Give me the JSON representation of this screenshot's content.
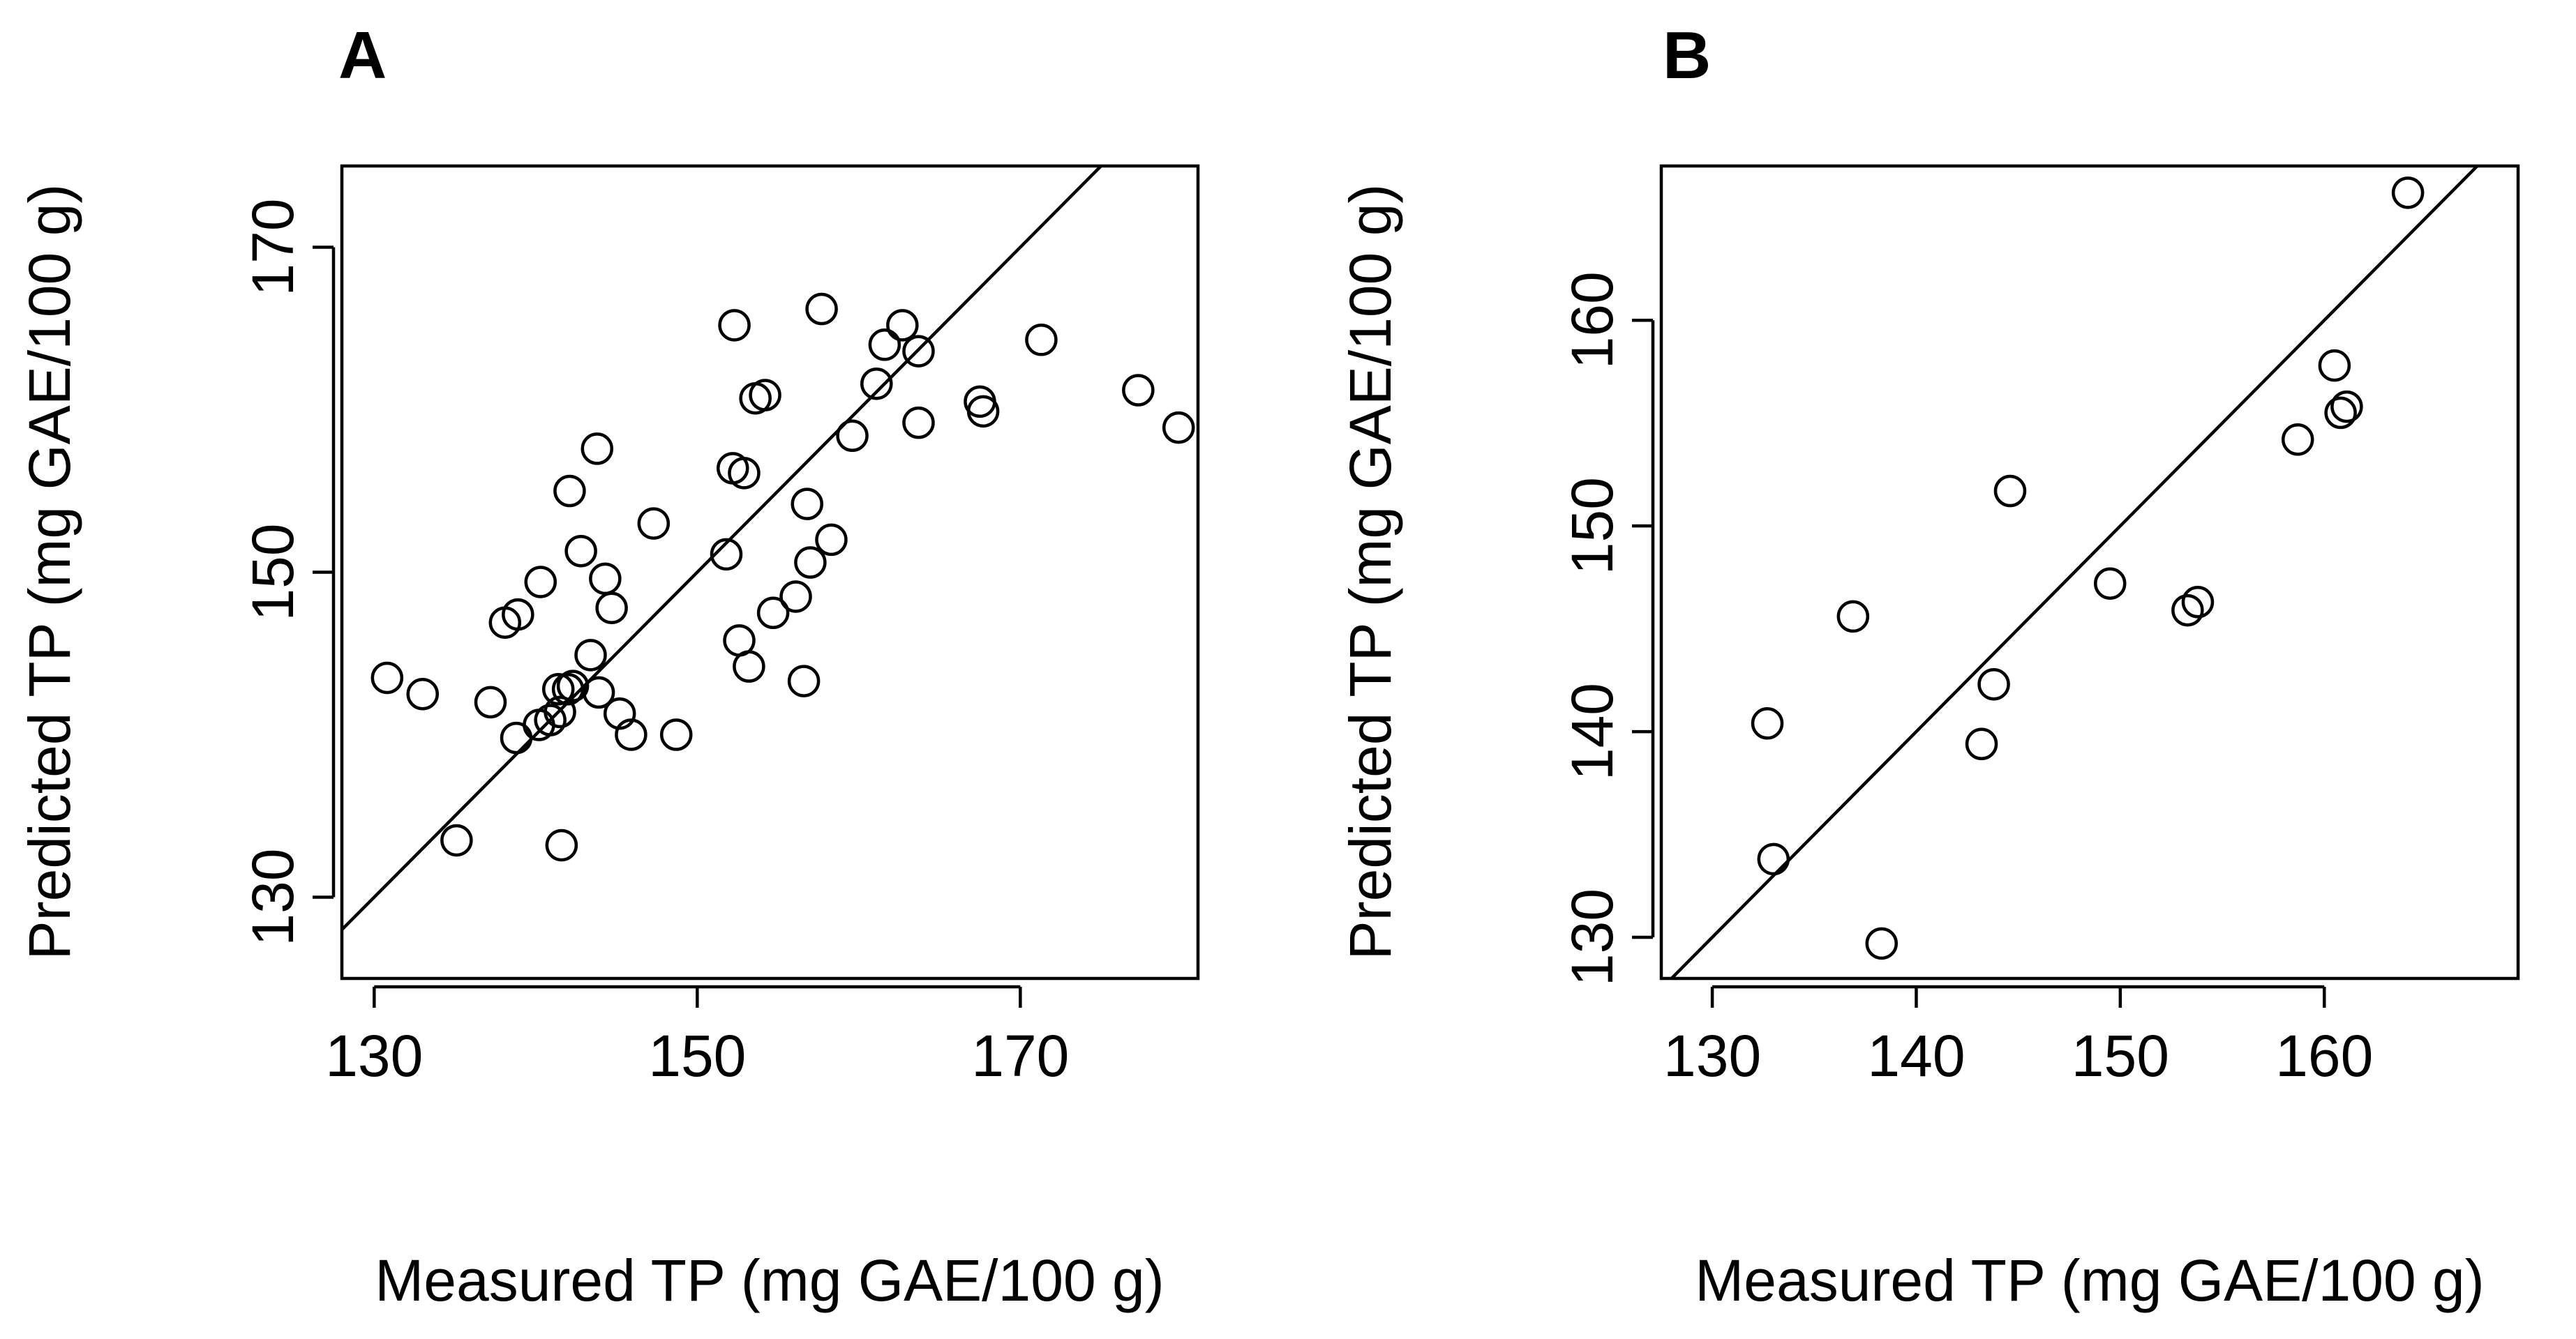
{
  "colors": {
    "background": "#ffffff",
    "ink": "#000000"
  },
  "chart_data": [
    {
      "type": "scatter",
      "panel": "A",
      "title": "",
      "xlabel": "Measured TP (mg GAE/100 g)",
      "ylabel": "Predicted TP (mg GAE/100 g)",
      "xlim": [
        128,
        181
      ],
      "ylim": [
        125,
        175
      ],
      "xticks": [
        130,
        150,
        170
      ],
      "yticks": [
        130,
        150,
        170
      ],
      "xtick_labels": [
        "130",
        "150",
        "170"
      ],
      "ytick_labels": [
        "130",
        "150",
        "170"
      ],
      "reference_line": "y = x",
      "marker": "open-circle",
      "points": [
        {
          "x": 130.8,
          "y": 143.5
        },
        {
          "x": 133.0,
          "y": 142.5
        },
        {
          "x": 135.1,
          "y": 133.5
        },
        {
          "x": 137.2,
          "y": 142.0
        },
        {
          "x": 138.1,
          "y": 146.9
        },
        {
          "x": 138.9,
          "y": 147.4
        },
        {
          "x": 138.8,
          "y": 139.8
        },
        {
          "x": 140.2,
          "y": 140.6
        },
        {
          "x": 140.3,
          "y": 149.4
        },
        {
          "x": 140.9,
          "y": 140.9
        },
        {
          "x": 141.5,
          "y": 141.4
        },
        {
          "x": 141.4,
          "y": 142.8
        },
        {
          "x": 142.0,
          "y": 142.8
        },
        {
          "x": 142.3,
          "y": 143.0
        },
        {
          "x": 141.6,
          "y": 133.2
        },
        {
          "x": 142.1,
          "y": 155.0
        },
        {
          "x": 142.8,
          "y": 151.3
        },
        {
          "x": 143.4,
          "y": 144.9
        },
        {
          "x": 143.9,
          "y": 142.6
        },
        {
          "x": 143.8,
          "y": 157.6
        },
        {
          "x": 144.3,
          "y": 149.6
        },
        {
          "x": 144.7,
          "y": 147.8
        },
        {
          "x": 145.2,
          "y": 141.3
        },
        {
          "x": 145.9,
          "y": 140.0
        },
        {
          "x": 147.3,
          "y": 153.0
        },
        {
          "x": 148.7,
          "y": 140.0
        },
        {
          "x": 151.8,
          "y": 151.1
        },
        {
          "x": 152.2,
          "y": 156.4
        },
        {
          "x": 152.3,
          "y": 165.2
        },
        {
          "x": 152.6,
          "y": 145.8
        },
        {
          "x": 152.9,
          "y": 156.1
        },
        {
          "x": 153.2,
          "y": 144.2
        },
        {
          "x": 153.6,
          "y": 160.7
        },
        {
          "x": 154.2,
          "y": 160.9
        },
        {
          "x": 154.7,
          "y": 147.5
        },
        {
          "x": 156.1,
          "y": 148.5
        },
        {
          "x": 156.6,
          "y": 143.3
        },
        {
          "x": 156.8,
          "y": 154.2
        },
        {
          "x": 157.0,
          "y": 150.6
        },
        {
          "x": 157.7,
          "y": 166.2
        },
        {
          "x": 158.3,
          "y": 152.0
        },
        {
          "x": 159.6,
          "y": 158.4
        },
        {
          "x": 161.1,
          "y": 161.6
        },
        {
          "x": 161.6,
          "y": 164.0
        },
        {
          "x": 162.7,
          "y": 165.2
        },
        {
          "x": 163.7,
          "y": 163.6
        },
        {
          "x": 163.7,
          "y": 159.2
        },
        {
          "x": 167.5,
          "y": 160.5
        },
        {
          "x": 167.7,
          "y": 159.9
        },
        {
          "x": 171.3,
          "y": 164.3
        },
        {
          "x": 177.3,
          "y": 161.2
        },
        {
          "x": 179.8,
          "y": 158.9
        }
      ]
    },
    {
      "type": "scatter",
      "panel": "B",
      "title": "",
      "xlabel": "Measured TP (mg GAE/100 g)",
      "ylabel": "Predicted TP (mg GAE/100 g)",
      "xlim": [
        127.5,
        169.5
      ],
      "ylim": [
        128,
        167.5
      ],
      "xticks": [
        130,
        140,
        150,
        160
      ],
      "yticks": [
        130,
        140,
        150,
        160
      ],
      "xtick_labels": [
        "130",
        "140",
        "150",
        "160"
      ],
      "ytick_labels": [
        "130",
        "140",
        "150",
        "160"
      ],
      "reference_line": "y = x",
      "marker": "open-circle",
      "points": [
        {
          "x": 132.7,
          "y": 140.4
        },
        {
          "x": 133.0,
          "y": 133.8
        },
        {
          "x": 136.9,
          "y": 145.6
        },
        {
          "x": 138.3,
          "y": 129.7
        },
        {
          "x": 143.2,
          "y": 139.4
        },
        {
          "x": 143.8,
          "y": 142.3
        },
        {
          "x": 144.6,
          "y": 151.7
        },
        {
          "x": 149.5,
          "y": 147.2
        },
        {
          "x": 153.3,
          "y": 145.9
        },
        {
          "x": 153.8,
          "y": 146.3
        },
        {
          "x": 158.7,
          "y": 154.2
        },
        {
          "x": 160.5,
          "y": 157.8
        },
        {
          "x": 160.8,
          "y": 155.5
        },
        {
          "x": 161.1,
          "y": 155.8
        },
        {
          "x": 164.1,
          "y": 166.2
        }
      ]
    }
  ]
}
